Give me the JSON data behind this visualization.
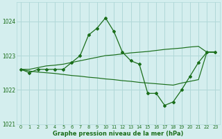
{
  "x": [
    0,
    1,
    2,
    3,
    4,
    5,
    6,
    7,
    8,
    9,
    10,
    11,
    12,
    13,
    14,
    15,
    16,
    17,
    18,
    19,
    20,
    21,
    22,
    23
  ],
  "y_main": [
    1022.6,
    1022.5,
    1022.6,
    1022.6,
    1022.6,
    1022.6,
    1022.8,
    1023.0,
    1023.6,
    1023.8,
    1024.1,
    1023.7,
    1023.1,
    1022.85,
    1022.75,
    1021.9,
    1021.9,
    1021.55,
    1021.65,
    1022.0,
    1022.4,
    1022.8,
    1023.1,
    1023.1
  ],
  "y_line_up": [
    1022.6,
    1022.6,
    1022.65,
    1022.7,
    1022.72,
    1022.75,
    1022.8,
    1022.85,
    1022.9,
    1022.95,
    1023.0,
    1023.02,
    1023.05,
    1023.08,
    1023.1,
    1023.12,
    1023.15,
    1023.18,
    1023.2,
    1023.22,
    1023.25,
    1023.27,
    1023.1,
    1023.1
  ],
  "y_line_down": [
    1022.6,
    1022.55,
    1022.52,
    1022.5,
    1022.48,
    1022.45,
    1022.42,
    1022.4,
    1022.37,
    1022.35,
    1022.32,
    1022.3,
    1022.27,
    1022.25,
    1022.22,
    1022.2,
    1022.18,
    1022.16,
    1022.14,
    1022.2,
    1022.25,
    1022.3,
    1023.1,
    1023.1
  ],
  "main_color": "#1a6e1a",
  "bg_color": "#d4eeee",
  "grid_color": "#b0d8d8",
  "text_color": "#1a6e1a",
  "xlabel": "Graphe pression niveau de la mer (hPa)",
  "ylim": [
    1021.0,
    1024.55
  ],
  "yticks": [
    1021,
    1022,
    1023,
    1024
  ],
  "xticks": [
    0,
    1,
    2,
    3,
    4,
    5,
    6,
    7,
    8,
    9,
    10,
    11,
    12,
    13,
    14,
    15,
    16,
    17,
    18,
    19,
    20,
    21,
    22,
    23
  ]
}
